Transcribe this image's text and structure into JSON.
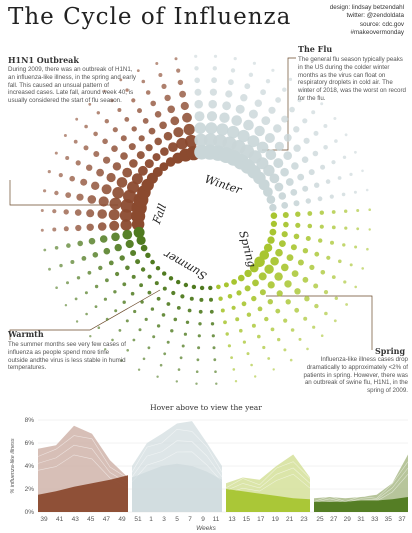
{
  "title": "The Cycle of Influenza",
  "credits": [
    "design: lindsay betzendahl",
    "twitter: @zendoldata",
    "source: cdc.gov",
    "#makeovermonday"
  ],
  "annotations": {
    "h1n1": {
      "title": "H1N1 Outbreak",
      "body": "During 2009, there was an outbreak of H1N1, an influenza-like illness, in the spring and early fall. This caused an unsual pattern of increased cases. Late fall, around week 40, is usually considered the start of flu season."
    },
    "flu": {
      "title": "The Flu",
      "body": "The general flu season typically peaks in the US during the colder winter months as the virus can float on respiratory droplets in cold air. The winter of 2018, was the worst on record for the flu."
    },
    "warmth": {
      "title": "Warmth",
      "body": "The summer months see very few cases of influenza as people spend more time outside andthe virus is less stable in humid temperatures."
    },
    "spring": {
      "title": "Spring",
      "body": "Influenza-like illness cases drop dramatically to approximately <2% of patients in spring. However, there was an outbreak of swine flu, H1N1, in the spring of 2009."
    }
  },
  "seasons": {
    "fall": "Fall",
    "winter": "Winter",
    "spring": "Spring",
    "summer": "Summer"
  },
  "hover_hint": "Hover above to view the year",
  "colors": {
    "fall": "#8b4a2f",
    "winter": "#c9d6d8",
    "spring": "#a8c530",
    "summer": "#4f7a1f",
    "fall_area": "#c9a99f",
    "winter_area": "#d3dee0",
    "spring_area": "#cfdc8c",
    "summer_area": "#9fb27a"
  },
  "chart_data": {
    "type": "area",
    "ylabel": "% influenza-like illness",
    "xlabel": "Weeks",
    "ylim": [
      0,
      8
    ],
    "yticks": [
      "0%",
      "2%",
      "4%",
      "6%",
      "8%"
    ],
    "panels": [
      {
        "season": "Fall",
        "tick_labels": [
          "39",
          "41",
          "43",
          "45",
          "47",
          "49"
        ],
        "peak_curve": [
          5.5,
          5.8,
          7.5,
          6.8,
          4.5,
          3.0
        ],
        "typical_curve": [
          1.5,
          1.8,
          2.2,
          2.5,
          2.8,
          3.2
        ]
      },
      {
        "season": "Winter",
        "tick_labels": [
          "51",
          "1",
          "3",
          "5",
          "7",
          "9",
          "11"
        ],
        "peak_curve": [
          4.0,
          6.0,
          6.8,
          7.7,
          7.9,
          6.0,
          4.0
        ],
        "typical_curve": [
          3.0,
          3.5,
          4.0,
          4.2,
          4.0,
          3.5,
          2.8
        ]
      },
      {
        "season": "Spring",
        "tick_labels": [
          "13",
          "15",
          "17",
          "19",
          "21",
          "23"
        ],
        "peak_curve": [
          2.5,
          3.0,
          2.8,
          4.0,
          5.0,
          3.0
        ],
        "typical_curve": [
          2.0,
          1.8,
          1.6,
          1.4,
          1.2,
          1.1
        ]
      },
      {
        "season": "Summer",
        "tick_labels": [
          "25",
          "27",
          "29",
          "31",
          "33",
          "35",
          "37"
        ],
        "peak_curve": [
          1.2,
          1.3,
          1.2,
          1.3,
          1.5,
          2.5,
          5.0
        ],
        "typical_curve": [
          0.9,
          0.9,
          0.9,
          1.0,
          1.0,
          1.1,
          1.3
        ]
      }
    ],
    "radial": {
      "type": "scatter",
      "weeks": [
        39,
        40,
        41,
        42,
        43,
        44,
        45,
        46,
        47,
        48,
        49,
        50,
        51,
        52,
        1,
        2,
        3,
        4,
        5,
        6,
        7,
        8,
        9,
        10,
        11,
        12,
        13,
        14,
        15,
        16,
        17,
        18,
        19,
        20,
        21,
        22,
        23,
        24,
        25,
        26,
        27,
        28,
        29,
        30,
        31,
        32,
        33,
        34,
        35,
        36,
        37,
        38
      ],
      "seasons": [
        "Fall",
        "Fall",
        "Fall",
        "Fall",
        "Fall",
        "Fall",
        "Fall",
        "Fall",
        "Fall",
        "Fall",
        "Fall",
        "Fall",
        "Fall",
        "Winter",
        "Winter",
        "Winter",
        "Winter",
        "Winter",
        "Winter",
        "Winter",
        "Winter",
        "Winter",
        "Winter",
        "Winter",
        "Winter",
        "Winter",
        "Spring",
        "Spring",
        "Spring",
        "Spring",
        "Spring",
        "Spring",
        "Spring",
        "Spring",
        "Spring",
        "Spring",
        "Spring",
        "Spring",
        "Spring",
        "Summer",
        "Summer",
        "Summer",
        "Summer",
        "Summer",
        "Summer",
        "Summer",
        "Summer",
        "Summer",
        "Summer",
        "Summer",
        "Summer",
        "Summer"
      ],
      "max_pct": [
        6.0,
        6.8,
        7.5,
        7.2,
        6.5,
        5.8,
        5.0,
        4.5,
        3.8,
        4.2,
        5.0,
        6.2,
        7.0,
        7.3,
        7.5,
        7.7,
        7.9,
        7.8,
        7.6,
        7.2,
        6.5,
        6.0,
        5.0,
        4.3,
        3.6,
        3.0,
        2.5,
        2.3,
        2.6,
        3.0,
        3.5,
        4.2,
        4.8,
        3.8,
        3.0,
        2.5,
        2.0,
        1.6,
        1.4,
        1.2,
        1.2,
        1.2,
        1.3,
        1.3,
        1.2,
        1.2,
        1.3,
        1.4,
        1.8,
        2.5,
        4.0,
        5.0
      ]
    }
  }
}
